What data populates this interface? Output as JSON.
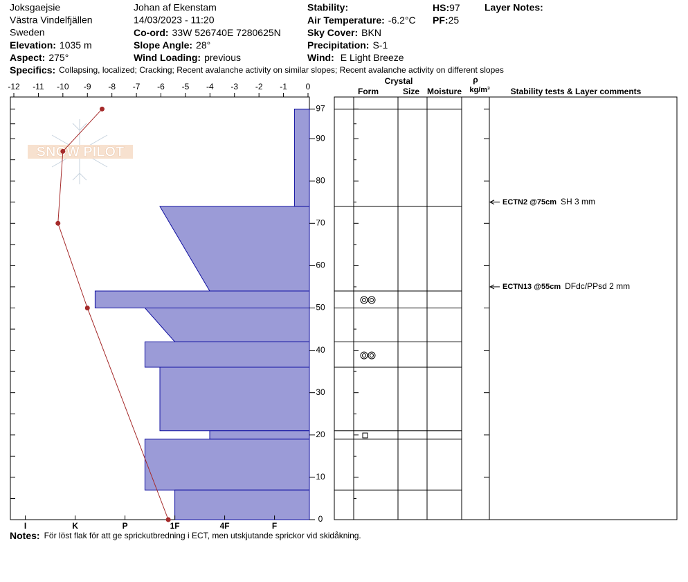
{
  "header": {
    "location": [
      "Joksgaejsie",
      "Västra Vindelfjällen",
      "Sweden"
    ],
    "elevation": {
      "label": "Elevation:",
      "value": "1035 m"
    },
    "aspect": {
      "label": "Aspect:",
      "value": "275°"
    },
    "observer": "Johan af Ekenstam",
    "datetime": "14/03/2023 - 11:20",
    "coord": {
      "label": "Co-ord:",
      "value": "33W 526740E 7280625N"
    },
    "slope_angle": {
      "label": "Slope Angle:",
      "value": "28°"
    },
    "wind_loading": {
      "label": "Wind Loading:",
      "value": "previous"
    },
    "stability": {
      "label": "Stability:"
    },
    "air_temperature": {
      "label": "Air Temperature:",
      "value": "-6.2°C"
    },
    "sky_cover": {
      "label": "Sky Cover:",
      "value": "BKN"
    },
    "precipitation": {
      "label": "Precipitation:",
      "value": "S-1"
    },
    "wind": {
      "label": "Wind:",
      "value": "E Light Breeze"
    },
    "hs": {
      "label": "HS:",
      "value": "97"
    },
    "pf": {
      "label": "PF:",
      "value": "25"
    },
    "layer_notes": {
      "label": "Layer Notes:"
    },
    "specifics": {
      "label": "Specifics:",
      "value": "Collapsing, localized; Cracking; Recent avalanche activity on similar slopes; Recent avalanche activity on different slopes"
    },
    "logo": "SNOW PILOT"
  },
  "columns": {
    "crystal": "Crystal",
    "form": "Form",
    "size": "Size",
    "moisture": "Moisture",
    "rho": "ρ",
    "density_unit": "kg/m³",
    "tests": "Stability tests & Layer comments"
  },
  "chart_data": {
    "type": "snow-profile",
    "ylim": [
      0,
      100
    ],
    "yticks": [
      0,
      10,
      20,
      30,
      40,
      50,
      60,
      70,
      80,
      90,
      97
    ],
    "temperature_xlim": [
      -12,
      0
    ],
    "temperature_xticks": [
      -12,
      -11,
      -10,
      -9,
      -8,
      -7,
      -6,
      -5,
      -4,
      -3,
      -2,
      -1,
      0
    ],
    "hardness_xlim": [
      6.3,
      0.3
    ],
    "hardness_xticks": [
      {
        "value": 6,
        "label": "I"
      },
      {
        "value": 5,
        "label": "K"
      },
      {
        "value": 4,
        "label": "P"
      },
      {
        "value": 3,
        "label": "1F"
      },
      {
        "value": 2,
        "label": "4F"
      },
      {
        "value": 1,
        "label": "F"
      }
    ],
    "layer_color": "#9b9bd7",
    "layers": [
      {
        "top": 97,
        "bottom": 74,
        "hardness_top": 0.6,
        "hardness_bottom": 0.6
      },
      {
        "top": 74,
        "bottom": 54,
        "hardness_top": 3.3,
        "hardness_bottom": 2.3
      },
      {
        "top": 54,
        "bottom": 50,
        "hardness_top": 4.6,
        "hardness_bottom": 4.6
      },
      {
        "top": 50,
        "bottom": 42,
        "hardness_top": 3.6,
        "hardness_bottom": 3.0
      },
      {
        "top": 42,
        "bottom": 36,
        "hardness_top": 3.6,
        "hardness_bottom": 3.6
      },
      {
        "top": 36,
        "bottom": 21,
        "hardness_top": 3.3,
        "hardness_bottom": 3.3
      },
      {
        "top": 21,
        "bottom": 19,
        "hardness_top": 2.3,
        "hardness_bottom": 2.3
      },
      {
        "top": 19,
        "bottom": 7,
        "hardness_top": 3.6,
        "hardness_bottom": 3.6
      },
      {
        "top": 7,
        "bottom": 0,
        "hardness_top": 3.0,
        "hardness_bottom": 3.0
      }
    ],
    "temperature_profile": {
      "color": "#a52a2a",
      "heights": [
        97,
        87,
        70,
        50,
        0
      ],
      "values": [
        -8.4,
        -10.0,
        -10.2,
        -9.0,
        -5.7
      ]
    },
    "stability_tests": [
      {
        "label": "ECTN2 @75cm",
        "height": 75,
        "comment": "SH 3 mm"
      },
      {
        "label": "ECTN13 @55cm",
        "height": 55,
        "comment": "DFdc/PPsd 2 mm"
      }
    ]
  },
  "notes": {
    "label": "Notes:",
    "value": "För löst flak för att ge sprickutbredning i ECT, men utskjutande sprickor vid skidåkning."
  }
}
